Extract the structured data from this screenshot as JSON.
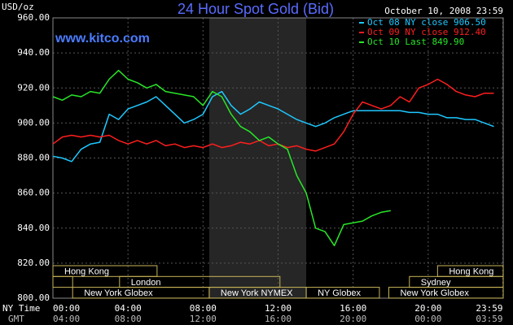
{
  "chart_data": {
    "type": "line",
    "title": "24 Hour Spot Gold (Bid)",
    "subtitle": "October 10, 2008 23:59",
    "y_label": "USD/oz",
    "watermark": "www.kitco.com",
    "x_axis_labels": [
      "NY Time",
      "GMT"
    ],
    "x": [
      0,
      0.5,
      1,
      1.5,
      2,
      2.5,
      3,
      3.5,
      4,
      4.5,
      5,
      5.5,
      6,
      6.5,
      7,
      7.5,
      8,
      8.5,
      9,
      9.5,
      10,
      10.5,
      11,
      11.5,
      12,
      12.5,
      13,
      13.5,
      14,
      14.5,
      15,
      15.5,
      16,
      16.5,
      17,
      17.5,
      18,
      18.5,
      19,
      19.5,
      20,
      20.5,
      21,
      21.5,
      22,
      22.5,
      23,
      23.5
    ],
    "series": [
      {
        "name": "Oct 08 NY close 906.50",
        "color": "#1ec8ff",
        "values": [
          881,
          880,
          878,
          885,
          888,
          889,
          905,
          902,
          908,
          910,
          912,
          915,
          910,
          905,
          900,
          902,
          905,
          915,
          918,
          910,
          905,
          908,
          912,
          910,
          908,
          905,
          902,
          900,
          898,
          900,
          903,
          905,
          907,
          907,
          907,
          907,
          907,
          907,
          906,
          906,
          905,
          905,
          903,
          903,
          902,
          902,
          900,
          898
        ]
      },
      {
        "name": "Oct 09 NY close 912.40",
        "color": "#ff1e1e",
        "values": [
          888,
          892,
          893,
          892,
          893,
          892,
          893,
          890,
          888,
          890,
          888,
          890,
          887,
          888,
          886,
          887,
          886,
          888,
          886,
          887,
          889,
          888,
          890,
          887,
          888,
          886,
          887,
          885,
          884,
          886,
          888,
          895,
          905,
          912,
          910,
          908,
          910,
          915,
          912,
          920,
          922,
          925,
          922,
          918,
          916,
          915,
          917,
          917
        ]
      },
      {
        "name": "Oct 10 Last 849.90",
        "color": "#28e628",
        "values": [
          915,
          913,
          916,
          915,
          918,
          917,
          925,
          930,
          925,
          923,
          920,
          922,
          918,
          917,
          916,
          915,
          910,
          918,
          915,
          905,
          898,
          895,
          890,
          892,
          888,
          885,
          870,
          860,
          840,
          838,
          830,
          842,
          843,
          844,
          847,
          849,
          850,
          null,
          null,
          null,
          null,
          null,
          null,
          null,
          null,
          null,
          null,
          null
        ]
      }
    ],
    "xlim": [
      0,
      24
    ],
    "ylim": [
      800,
      960
    ],
    "xticks": [
      {
        "value": 0,
        "label": "00:00"
      },
      {
        "value": 4,
        "label": "04:00"
      },
      {
        "value": 8,
        "label": "08:00"
      },
      {
        "value": 12,
        "label": "12:00"
      },
      {
        "value": 16,
        "label": "16:00"
      },
      {
        "value": 20,
        "label": "20:00"
      },
      {
        "value": 23.98,
        "label": "23:59"
      }
    ],
    "gmt_ticks": [
      {
        "value": 0,
        "label": "04:00"
      },
      {
        "value": 4,
        "label": "08:00"
      },
      {
        "value": 8,
        "label": "12:00"
      },
      {
        "value": 12,
        "label": "16:00"
      },
      {
        "value": 16,
        "label": "20:00"
      },
      {
        "value": 20,
        "label": "00:00"
      },
      {
        "value": 23.98,
        "label": "03:59"
      }
    ],
    "yticks": [
      {
        "value": 800,
        "label": "800.00"
      },
      {
        "value": 820,
        "label": "820.00"
      },
      {
        "value": 840,
        "label": "840.00"
      },
      {
        "value": 860,
        "label": "860.00"
      },
      {
        "value": 880,
        "label": "880.00"
      },
      {
        "value": 900,
        "label": "900.00"
      },
      {
        "value": 920,
        "label": "920.00"
      },
      {
        "value": 940,
        "label": "940.00"
      },
      {
        "value": 960,
        "label": "960.00"
      }
    ],
    "grid": true,
    "nymex_shade": [
      8.33,
      13.5
    ],
    "sessions": [
      {
        "label": "Hong Kong",
        "start": 0,
        "end": 5.55,
        "row": 0
      },
      {
        "label": "Hong Kong",
        "start": 20.5,
        "end": 24,
        "row": 0
      },
      {
        "start": 0,
        "end": 1.05,
        "row": 1
      },
      {
        "label": "London",
        "start": 3.55,
        "end": 12.1,
        "row": 1
      },
      {
        "label": "Sydney",
        "start": 19,
        "end": 24,
        "row": 1
      },
      {
        "label": "New York Globex",
        "start": 1.05,
        "end": 8.33,
        "row": 2
      },
      {
        "label": "New York NYMEX",
        "start": 8.33,
        "end": 13.5,
        "row": 2
      },
      {
        "label": "NY Globex",
        "start": 13.5,
        "end": 17.4,
        "row": 2
      },
      {
        "label": "New York Globex",
        "start": 17.9,
        "end": 24,
        "row": 2
      }
    ]
  }
}
